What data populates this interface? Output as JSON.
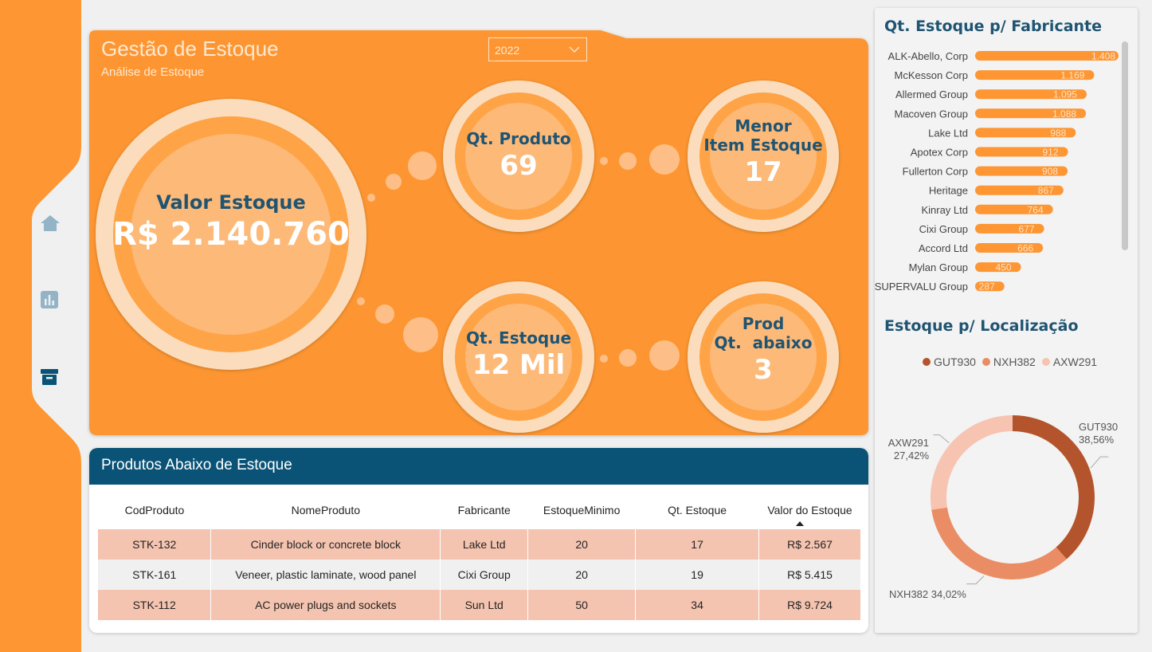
{
  "hero": {
    "title": "Gestão de Estoque",
    "subtitle": "Análise de Estoque",
    "year_filter": "2022"
  },
  "kpis": {
    "valor_estoque": {
      "label": "Valor Estoque",
      "value": "R$ 2.140.760"
    },
    "qt_produto": {
      "label": "Qt. Produto",
      "value": "69"
    },
    "menor_item": {
      "label_line1": "Menor",
      "label_line2": "Item Estoque",
      "value": "17"
    },
    "qt_estoque": {
      "label": "Qt. Estoque",
      "value": "12 Mil"
    },
    "prod_abaixo": {
      "label_line1": "Prod",
      "label_line2": "Qt.  abaixo",
      "value": "3"
    }
  },
  "nav": {
    "icons": [
      "home-icon",
      "bar-chart-icon",
      "archive-icon"
    ]
  },
  "table": {
    "title": "Produtos Abaixo de Estoque",
    "columns": [
      "CodProduto",
      "NomeProduto",
      "Fabricante",
      "EstoqueMinimo",
      "Qt. Estoque",
      "Valor do Estoque"
    ],
    "rows": [
      [
        "STK-132",
        "Cinder block or concrete block",
        "Lake Ltd",
        "20",
        "17",
        "R$ 2.567"
      ],
      [
        "STK-161",
        "Veneer, plastic laminate, wood panel",
        "Cixi Group",
        "20",
        "19",
        "R$ 5.415"
      ],
      [
        "STK-112",
        "AC power plugs and sockets",
        "Sun Ltd",
        "50",
        "34",
        "R$ 9.724"
      ]
    ]
  },
  "right": {
    "bar_title": "Qt. Estoque p/ Fabricante",
    "donut_title": "Estoque p/ Localização"
  },
  "chart_data": [
    {
      "type": "bar",
      "orientation": "horizontal",
      "title": "Qt. Estoque p/ Fabricante",
      "categories": [
        "ALK-Abello, Corp",
        "McKesson Corp",
        "Allermed Group",
        "Macoven Group",
        "Lake Ltd",
        "Apotex Corp",
        "Fullerton Corp",
        "Heritage",
        "Kinray Ltd",
        "Cixi Group",
        "Accord Ltd",
        "Mylan Group",
        "SUPERVALU Group"
      ],
      "values": [
        1408,
        1169,
        1095,
        1088,
        988,
        912,
        908,
        867,
        764,
        677,
        666,
        450,
        287
      ],
      "value_labels": [
        "1.408",
        "1.169",
        "1.095",
        "1.088",
        "988",
        "912",
        "908",
        "867",
        "764",
        "677",
        "666",
        "450",
        "287"
      ],
      "color": "#fd9633"
    },
    {
      "type": "pie",
      "donut": true,
      "title": "Estoque p/ Localização",
      "legend": "top",
      "slices": [
        {
          "name": "GUT930",
          "value": 38.56,
          "label": "38,56%",
          "color": "#b4542c"
        },
        {
          "name": "NXH382",
          "value": 34.02,
          "label": "34,02%",
          "color": "#ea8d65"
        },
        {
          "name": "AXW291",
          "value": 27.42,
          "label": "27,42%",
          "color": "#f6c4b1"
        }
      ]
    }
  ]
}
